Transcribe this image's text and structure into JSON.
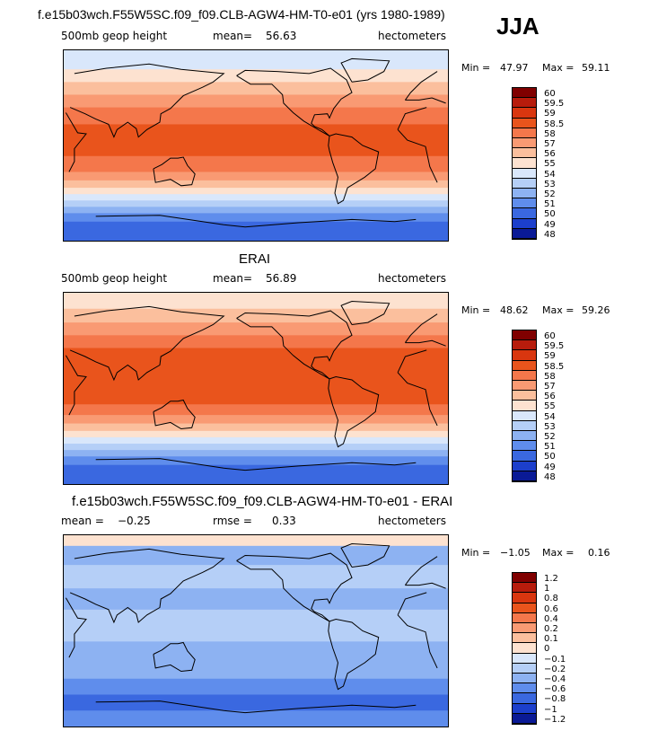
{
  "header": {
    "title": "f.e15b03wch.F55W5SC.f09_f09.CLB-AGW4-HM-T0-e01 (yrs 1980-1989)",
    "season": "JJA"
  },
  "chart_data": [
    {
      "type": "heatmap",
      "panel_title": "",
      "field": "500mb geop height",
      "stat_label": "mean=",
      "stat_value": "56.63",
      "units": "hectometers",
      "min_label": "Min =",
      "min_value": "47.97",
      "max_label": "Max =",
      "max_value": "59.11",
      "levels": [
        "60",
        "59.5",
        "59",
        "58.5",
        "58",
        "57",
        "56",
        "55",
        "54",
        "53",
        "52",
        "51",
        "50",
        "49",
        "48"
      ],
      "colors": [
        "#800000",
        "#b71c0c",
        "#d9360f",
        "#e9541c",
        "#f4774b",
        "#f99a73",
        "#fbbf9d",
        "#fde2d0",
        "#d9e7fb",
        "#b5cff7",
        "#8db2f2",
        "#5f8dec",
        "#3a68e0",
        "#1c3fcc",
        "#0a1a96"
      ],
      "bands": [
        {
          "lat_from": 90,
          "lat_to": 72,
          "value": 54.5
        },
        {
          "lat_from": 72,
          "lat_to": 60,
          "value": 55.5
        },
        {
          "lat_from": 60,
          "lat_to": 48,
          "value": 56.5
        },
        {
          "lat_from": 48,
          "lat_to": 36,
          "value": 57.5
        },
        {
          "lat_from": 36,
          "lat_to": 20,
          "value": 58.3
        },
        {
          "lat_from": 20,
          "lat_to": -10,
          "value": 58.8
        },
        {
          "lat_from": -10,
          "lat_to": -25,
          "value": 58.3
        },
        {
          "lat_from": -25,
          "lat_to": -33,
          "value": 57.5
        },
        {
          "lat_from": -33,
          "lat_to": -40,
          "value": 56.5
        },
        {
          "lat_from": -40,
          "lat_to": -46,
          "value": 55.5
        },
        {
          "lat_from": -46,
          "lat_to": -52,
          "value": 54.5
        },
        {
          "lat_from": -52,
          "lat_to": -58,
          "value": 53.5
        },
        {
          "lat_from": -58,
          "lat_to": -64,
          "value": 52.5
        },
        {
          "lat_from": -64,
          "lat_to": -72,
          "value": 51.3
        },
        {
          "lat_from": -72,
          "lat_to": -90,
          "value": 50.3
        }
      ]
    },
    {
      "type": "heatmap",
      "panel_title": "ERAI",
      "field": "500mb geop height",
      "stat_label": "mean=",
      "stat_value": "56.89",
      "units": "hectometers",
      "min_label": "Min =",
      "min_value": "48.62",
      "max_label": "Max =",
      "max_value": "59.26",
      "levels": [
        "60",
        "59.5",
        "59",
        "58.5",
        "58",
        "57",
        "56",
        "55",
        "54",
        "53",
        "52",
        "51",
        "50",
        "49",
        "48"
      ],
      "colors": [
        "#800000",
        "#b71c0c",
        "#d9360f",
        "#e9541c",
        "#f4774b",
        "#f99a73",
        "#fbbf9d",
        "#fde2d0",
        "#d9e7fb",
        "#b5cff7",
        "#8db2f2",
        "#5f8dec",
        "#3a68e0",
        "#1c3fcc",
        "#0a1a96"
      ],
      "bands": [
        {
          "lat_from": 90,
          "lat_to": 75,
          "value": 55.5
        },
        {
          "lat_from": 75,
          "lat_to": 62,
          "value": 56.5
        },
        {
          "lat_from": 62,
          "lat_to": 50,
          "value": 57.5
        },
        {
          "lat_from": 50,
          "lat_to": 38,
          "value": 58.3
        },
        {
          "lat_from": 38,
          "lat_to": -15,
          "value": 58.8
        },
        {
          "lat_from": -15,
          "lat_to": -25,
          "value": 58.3
        },
        {
          "lat_from": -25,
          "lat_to": -33,
          "value": 57.5
        },
        {
          "lat_from": -33,
          "lat_to": -40,
          "value": 56.5
        },
        {
          "lat_from": -40,
          "lat_to": -46,
          "value": 55.5
        },
        {
          "lat_from": -46,
          "lat_to": -52,
          "value": 54.5
        },
        {
          "lat_from": -52,
          "lat_to": -58,
          "value": 53.5
        },
        {
          "lat_from": -58,
          "lat_to": -64,
          "value": 52.5
        },
        {
          "lat_from": -64,
          "lat_to": -72,
          "value": 51.3
        },
        {
          "lat_from": -72,
          "lat_to": -90,
          "value": 50.3
        }
      ]
    },
    {
      "type": "heatmap",
      "panel_title": "f.e15b03wch.F55W5SC.f09_f09.CLB-AGW4-HM-T0-e01 - ERAI",
      "field": "mean =",
      "stat_label": "rmse =",
      "stat_value": "0.33",
      "mean_value": "−0.25",
      "units": "hectometers",
      "min_label": "Min =",
      "min_value": "−1.05",
      "max_label": "Max =",
      "max_value": "0.16",
      "levels": [
        "1.2",
        "1",
        "0.8",
        "0.6",
        "0.4",
        "0.2",
        "0.1",
        "0",
        "−0.1",
        "−0.2",
        "−0.4",
        "−0.6",
        "−0.8",
        "−1",
        "−1.2"
      ],
      "colors": [
        "#800000",
        "#b71c0c",
        "#d9360f",
        "#e9541c",
        "#f4774b",
        "#f99a73",
        "#fbbf9d",
        "#fde2d0",
        "#d9e7fb",
        "#b5cff7",
        "#8db2f2",
        "#5f8dec",
        "#3a68e0",
        "#1c3fcc",
        "#0a1a96"
      ],
      "bands": [
        {
          "lat_from": 90,
          "lat_to": 80,
          "value": 0.05
        },
        {
          "lat_from": 80,
          "lat_to": 62,
          "value": -0.3
        },
        {
          "lat_from": 62,
          "lat_to": 40,
          "value": -0.15
        },
        {
          "lat_from": 40,
          "lat_to": 20,
          "value": -0.3
        },
        {
          "lat_from": 20,
          "lat_to": -10,
          "value": -0.15
        },
        {
          "lat_from": -10,
          "lat_to": -30,
          "value": -0.3
        },
        {
          "lat_from": -30,
          "lat_to": -45,
          "value": -0.3
        },
        {
          "lat_from": -45,
          "lat_to": -60,
          "value": -0.5
        },
        {
          "lat_from": -60,
          "lat_to": -75,
          "value": -0.7
        },
        {
          "lat_from": -75,
          "lat_to": -90,
          "value": -0.45
        }
      ]
    }
  ]
}
